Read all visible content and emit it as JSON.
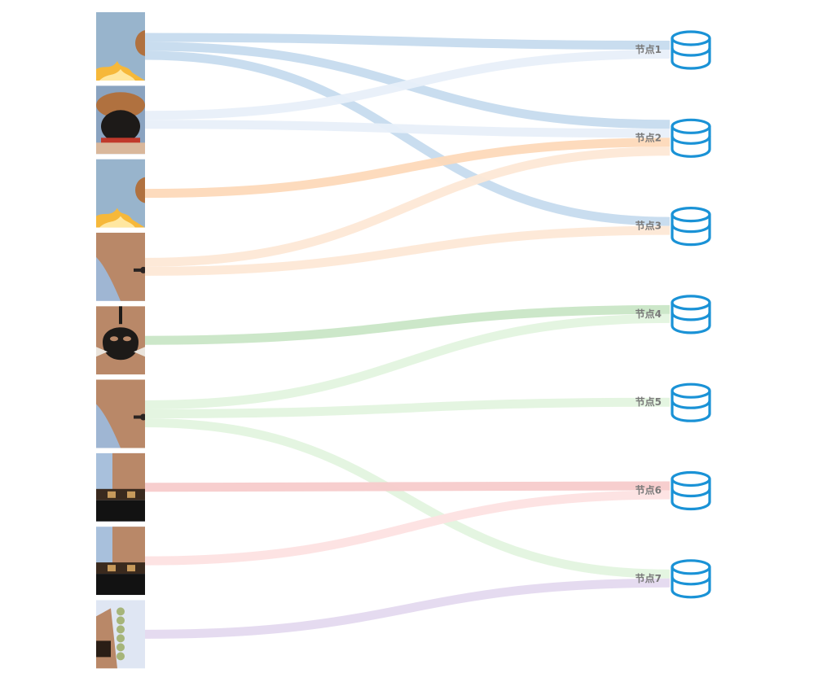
{
  "diagram": {
    "sources": [
      {
        "id": "s1",
        "art": "hat-flame"
      },
      {
        "id": "s2",
        "art": "hat-face"
      },
      {
        "id": "s3",
        "art": "hat-flame"
      },
      {
        "id": "s4",
        "art": "shoulder-tattoo"
      },
      {
        "id": "s5",
        "art": "jolly-roger"
      },
      {
        "id": "s6",
        "art": "shoulder-tattoo"
      },
      {
        "id": "s7",
        "art": "belt"
      },
      {
        "id": "s8",
        "art": "belt"
      },
      {
        "id": "s9",
        "art": "arm-beads"
      }
    ],
    "targets": [
      {
        "id": "t1",
        "label": "节点1",
        "icon": "database-icon"
      },
      {
        "id": "t2",
        "label": "节点2",
        "icon": "database-icon"
      },
      {
        "id": "t3",
        "label": "节点3",
        "icon": "database-icon"
      },
      {
        "id": "t4",
        "label": "节点4",
        "icon": "database-icon"
      },
      {
        "id": "t5",
        "label": "节点5",
        "icon": "database-icon"
      },
      {
        "id": "t6",
        "label": "节点6",
        "icon": "database-icon"
      },
      {
        "id": "t7",
        "label": "节点7",
        "icon": "database-icon"
      }
    ],
    "links": [
      {
        "source": 0,
        "target": 0,
        "color": "#c6dbee"
      },
      {
        "source": 0,
        "target": 1,
        "color": "#c6dbee"
      },
      {
        "source": 0,
        "target": 2,
        "color": "#c6dbee"
      },
      {
        "source": 1,
        "target": 0,
        "color": "#e8eff9"
      },
      {
        "source": 1,
        "target": 1,
        "color": "#e8eff9"
      },
      {
        "source": 2,
        "target": 1,
        "color": "#fdd9b9"
      },
      {
        "source": 3,
        "target": 1,
        "color": "#fde8d6"
      },
      {
        "source": 3,
        "target": 2,
        "color": "#fde8d6"
      },
      {
        "source": 4,
        "target": 3,
        "color": "#c9e6c6"
      },
      {
        "source": 5,
        "target": 3,
        "color": "#e3f4df"
      },
      {
        "source": 5,
        "target": 4,
        "color": "#e3f4df"
      },
      {
        "source": 5,
        "target": 6,
        "color": "#e3f4df"
      },
      {
        "source": 6,
        "target": 5,
        "color": "#f7cbcb"
      },
      {
        "source": 7,
        "target": 5,
        "color": "#fde2e2"
      },
      {
        "source": 8,
        "target": 6,
        "color": "#e4d9ef"
      }
    ],
    "colors": {
      "icon": "#1a92d6",
      "label": "#7a7a7a",
      "sky": "#98b4cc",
      "skin": "#b98868",
      "hat": "#b0713f",
      "flame": "#f6b83a"
    }
  }
}
